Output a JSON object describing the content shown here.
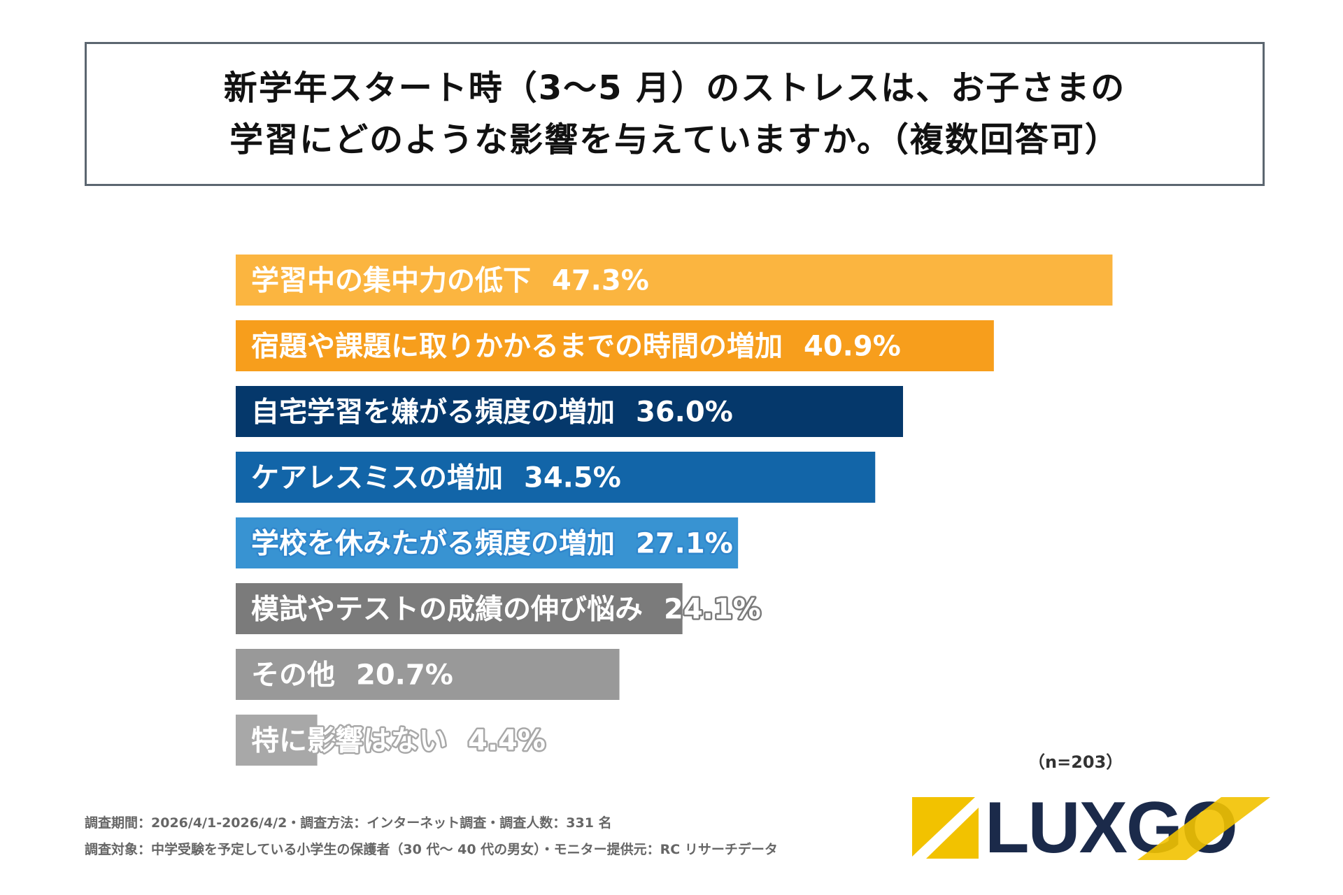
{
  "title": {
    "line1": "新学年スタート時（3〜5 月）のストレスは、お子さまの",
    "line2": "学習にどのような影響を与えていますか。（複数回答可）"
  },
  "sample_size": "（n=203）",
  "footnotes": {
    "line1": "調査期間：2026/4/1-2026/4/2・調査方法：インターネット調査・調査人数：331 名",
    "line2": "調査対象：中学受験を予定している小学生の保護者（30 代〜 40 代の男女）・モニター提供元：RC リサーチデータ"
  },
  "logo": {
    "text": "LUXGO",
    "accent_color": "#f2c200",
    "text_color": "#1b2a4a"
  },
  "chart_data": {
    "type": "bar",
    "orientation": "horizontal",
    "title": "新学年スタート時（3〜5 月）のストレスは、お子さまの学習にどのような影響を与えていますか。（複数回答可）",
    "unit": "%",
    "xlim": [
      0,
      50
    ],
    "categories": [
      "学習中の集中力の低下",
      "宿題や課題に取りかかるまでの時間の増加",
      "自宅学習を嫌がる頻度の増加",
      "ケアレスミスの増加",
      "学校を休みたがる頻度の増加",
      "模試やテストの成績の伸び悩み",
      "その他",
      "特に影響はない"
    ],
    "values": [
      47.3,
      40.9,
      36.0,
      34.5,
      27.1,
      24.1,
      20.7,
      4.4
    ],
    "value_labels": [
      "47.3%",
      "40.9%",
      "36.0%",
      "34.5%",
      "27.1%",
      "24.1%",
      "20.7%",
      "4.4%"
    ],
    "colors": [
      "#fbb540",
      "#f79e1c",
      "#05386b",
      "#1265a8",
      "#3893d2",
      "#7b7b7b",
      "#999999",
      "#a8a8a8"
    ],
    "label_outline_colors": [
      "none",
      "none",
      "none",
      "none",
      "#2f86cc",
      "#7b7b7b",
      "none",
      "#a8a8a8"
    ],
    "n": 203
  }
}
